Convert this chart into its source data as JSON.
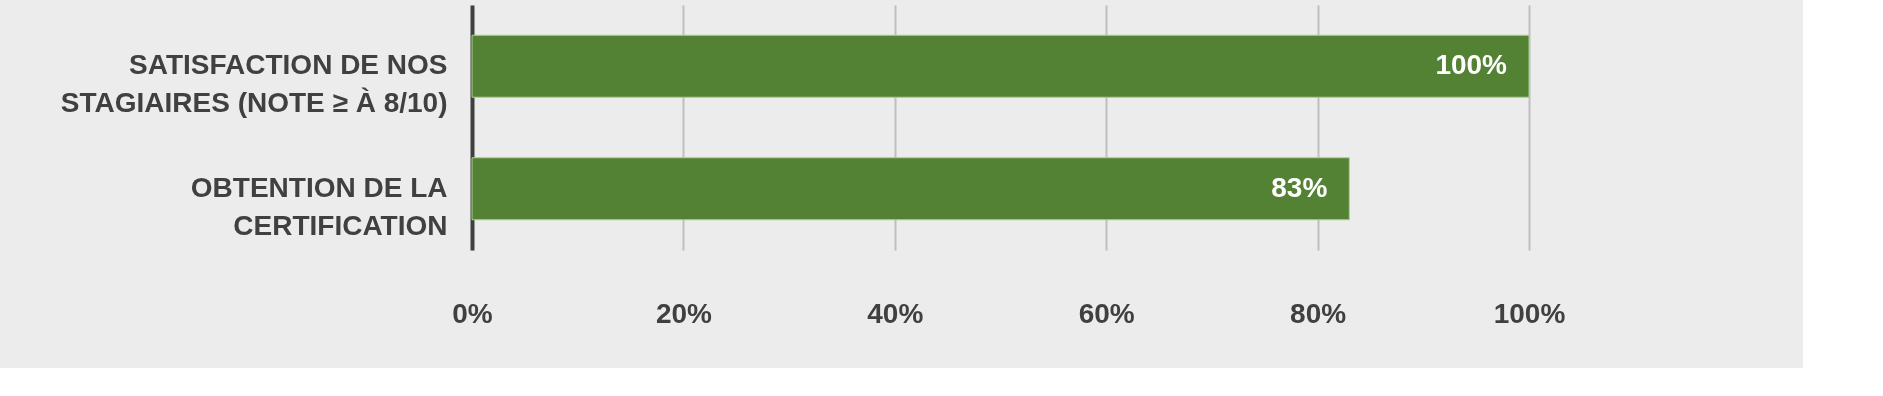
{
  "chart_data": {
    "type": "bar",
    "orientation": "horizontal",
    "categories": [
      "SATISFACTION DE NOS STAGIAIRES (NOTE ≥ À 8/10)",
      "OBTENTION DE LA CERTIFICATION"
    ],
    "values": [
      100,
      83
    ],
    "color": "#548235",
    "value_labels": [
      "100%",
      "83%"
    ],
    "xlim": [
      0,
      100
    ],
    "xticks": [
      {
        "value": 0,
        "label": "0%"
      },
      {
        "value": 20,
        "label": "20%"
      },
      {
        "value": 40,
        "label": "40%"
      },
      {
        "value": 60,
        "label": "60%"
      },
      {
        "value": 80,
        "label": "80%"
      },
      {
        "value": 100,
        "label": "100%"
      }
    ],
    "grid": "x"
  }
}
